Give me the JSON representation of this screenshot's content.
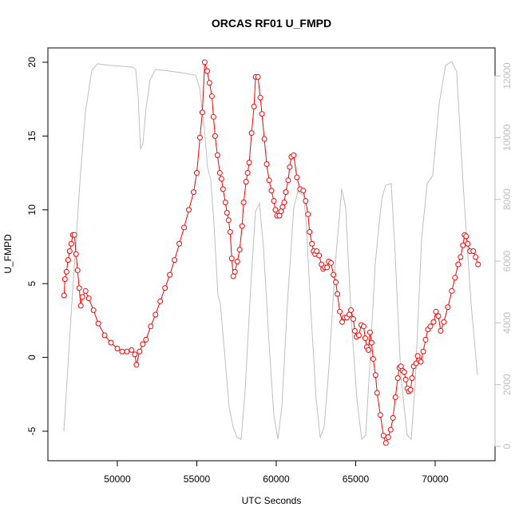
{
  "chart_data": {
    "type": "line",
    "title": "ORCAS RF01 U_FMPD",
    "xlabel": "UTC Seconds",
    "ylabel": "U_FMPD",
    "xlim": [
      45630,
      73770
    ],
    "xticks": [
      50000,
      55000,
      60000,
      65000,
      70000
    ],
    "ylim": [
      -7,
      20.97
    ],
    "yticks": [
      -5,
      0,
      5,
      10,
      15,
      20
    ],
    "y2lim": [
      -465,
      12905
    ],
    "y2ticks": [
      0,
      2000,
      4000,
      6000,
      8000,
      10000,
      12000
    ],
    "series": [
      {
        "color": "#ff0000",
        "markers": true,
        "x": [
          46650,
          46700,
          46800,
          46900,
          47000,
          47100,
          47200,
          47300,
          47400,
          47500,
          47600,
          47700,
          47800,
          48000,
          48200,
          48500,
          48800,
          49200,
          49600,
          50000,
          50300,
          50600,
          50900,
          51100,
          51200,
          51400,
          51600,
          51800,
          52100,
          52400,
          52700,
          53000,
          53300,
          53600,
          53900,
          54200,
          54500,
          54800,
          55000,
          55200,
          55350,
          55500,
          55650,
          55800,
          55950,
          56050,
          56150,
          56300,
          56450,
          56550,
          56650,
          56800,
          56900,
          57000,
          57100,
          57200,
          57300,
          57400,
          57550,
          57700,
          57850,
          57950,
          58100,
          58200,
          58300,
          58450,
          58600,
          58700,
          58850,
          59000,
          59100,
          59250,
          59400,
          59550,
          59700,
          59850,
          59950,
          60050,
          60200,
          60300,
          60400,
          60500,
          60600,
          60750,
          60850,
          60950,
          61100,
          61300,
          61500,
          61700,
          61850,
          62000,
          62100,
          62250,
          62350,
          62450,
          62550,
          62700,
          62850,
          62950,
          63050,
          63200,
          63300,
          63450,
          63600,
          63750,
          63850,
          64000,
          64150,
          64300,
          64450,
          64600,
          64700,
          64850,
          64950,
          65050,
          65200,
          65350,
          65500,
          65600,
          65700,
          65800,
          65900,
          66000,
          66100,
          66250,
          66350,
          66550,
          66750,
          66900,
          67050,
          67200,
          67350,
          67500,
          67650,
          67750,
          67850,
          67950,
          68050,
          68150,
          68250,
          68350,
          68450,
          68550,
          68650,
          68800,
          68900,
          69000,
          69100,
          69250,
          69400,
          69550,
          69700,
          69900,
          70050,
          70200,
          70350,
          70550,
          70800,
          71050,
          71250,
          71450,
          71600,
          71750,
          71850,
          71950,
          72050,
          72200,
          72400,
          72550,
          72700
        ],
        "values": [
          4.2,
          5.3,
          5.8,
          6.6,
          7.2,
          7.7,
          8.3,
          8.3,
          7.0,
          5.9,
          4.7,
          3.5,
          4.1,
          4.5,
          4.0,
          3.2,
          2.3,
          1.5,
          1.0,
          0.6,
          0.4,
          0.4,
          0.5,
          0.2,
          -0.5,
          0.4,
          0.9,
          1.2,
          2.1,
          2.9,
          3.8,
          4.7,
          5.6,
          6.6,
          7.7,
          8.8,
          10.0,
          11.2,
          12.5,
          14.9,
          16.6,
          20.0,
          19.4,
          18.6,
          17.7,
          16.3,
          15.0,
          13.7,
          12.5,
          12.1,
          11.4,
          10.5,
          9.8,
          9.3,
          8.5,
          6.7,
          5.5,
          5.8,
          6.5,
          7.3,
          8.9,
          10.5,
          11.9,
          12.5,
          13.2,
          15.2,
          17.0,
          19.0,
          19.0,
          17.6,
          16.5,
          14.8,
          13.1,
          12.0,
          11.3,
          10.6,
          10.0,
          9.6,
          9.6,
          9.9,
          10.2,
          10.5,
          11.2,
          12.0,
          12.9,
          13.6,
          13.7,
          12.2,
          11.4,
          11.3,
          10.6,
          9.7,
          8.5,
          7.7,
          7.2,
          7.0,
          7.2,
          6.9,
          6.3,
          6.0,
          6.1,
          6.1,
          6.5,
          6.4,
          5.6,
          5.1,
          4.3,
          3.1,
          2.4,
          2.7,
          2.7,
          2.9,
          3.2,
          2.6,
          1.8,
          1.4,
          1.5,
          2.2,
          2.1,
          1.3,
          0.7,
          0.5,
          1.7,
          1.0,
          -0.1,
          -1.2,
          -2.4,
          -3.9,
          -5.3,
          -5.8,
          -5.4,
          -4.9,
          -4.1,
          -2.7,
          -1.4,
          -0.7,
          -0.6,
          -0.9,
          -1.0,
          -1.5,
          -2.1,
          -2.3,
          -2.2,
          -1.4,
          -0.6,
          -0.4,
          0.1,
          -0.2,
          -0.3,
          0.4,
          1.2,
          1.9,
          2.1,
          2.4,
          3.1,
          2.8,
          1.8,
          2.4,
          3.4,
          4.5,
          5.4,
          6.3,
          6.8,
          7.6,
          8.3,
          8.2,
          7.7,
          7.2,
          7.2,
          6.8,
          6.3
        ]
      },
      {
        "color": "#bebebe",
        "axis": "y2",
        "markers": false,
        "x": [
          46633,
          47136,
          47638,
          47990,
          48392,
          48744,
          49648,
          50905,
          51156,
          51307,
          51457,
          51608,
          51809,
          52060,
          52412,
          53668,
          54924,
          55176,
          55477,
          55678,
          55879,
          56080,
          56332,
          56482,
          56784,
          57035,
          57286,
          57537,
          57789,
          58040,
          58392,
          58693,
          58945,
          59196,
          59548,
          59849,
          60101,
          60352,
          60703,
          61105,
          61357,
          61709,
          61859,
          62211,
          62513,
          62764,
          63015,
          63317,
          63719,
          64121,
          64372,
          64724,
          65076,
          65377,
          65629,
          65880,
          66231,
          66633,
          66884,
          67236,
          67487,
          67839,
          68241,
          68492,
          68744,
          69146,
          69497,
          69849,
          70251,
          70653,
          71055,
          71356,
          71758,
          72261,
          72663
        ],
        "values": [
          490,
          4630,
          8510,
          10835,
          12180,
          12390,
          12335,
          12285,
          12210,
          11350,
          9620,
          9800,
          10965,
          11870,
          12210,
          12130,
          12025,
          11610,
          10320,
          9025,
          8640,
          7215,
          4890,
          4630,
          2820,
          1270,
          620,
          285,
          230,
          1785,
          5145,
          7600,
          7860,
          6440,
          3335,
          1010,
          230,
          1270,
          4630,
          7730,
          8250,
          8120,
          7470,
          4110,
          1525,
          285,
          620,
          2560,
          5920,
          8330,
          7730,
          4110,
          1525,
          230,
          360,
          2560,
          5920,
          7990,
          8460,
          8510,
          6180,
          2300,
          360,
          230,
          2040,
          6700,
          8510,
          8770,
          11095,
          12335,
          12465,
          12130,
          8510,
          4630,
          2300
        ]
      }
    ]
  }
}
